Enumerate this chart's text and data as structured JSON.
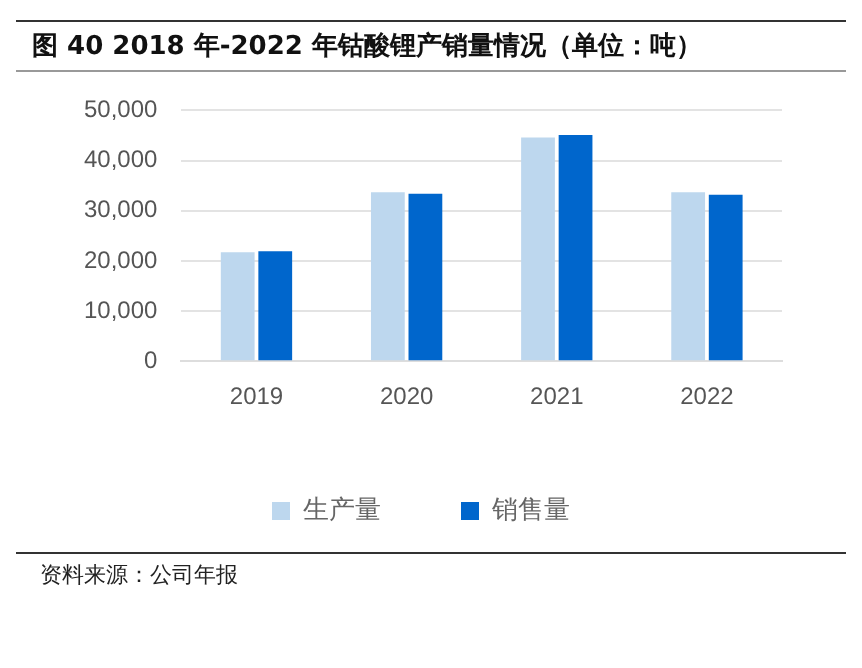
{
  "chart_data": {
    "type": "bar",
    "title": "图 40 2018 年-2022 年钴酸锂产销量情况（单位：吨）",
    "categories": [
      "2019",
      "2020",
      "2021",
      "2022"
    ],
    "series": [
      {
        "name": "生产量",
        "color": "#bdd7ee",
        "values": [
          21700,
          33700,
          44600,
          33700
        ]
      },
      {
        "name": "销售量",
        "color": "#0066cc",
        "values": [
          21900,
          33400,
          45100,
          33200
        ]
      }
    ],
    "ylim": [
      0,
      50000
    ],
    "yticks": [
      0,
      {
        "value": 10000,
        "label": "10,000"
      },
      {
        "value": 20000,
        "label": "20,000"
      },
      {
        "value": 30000,
        "label": "30,000"
      },
      {
        "value": 40000,
        "label": "40,000"
      },
      {
        "value": 50000,
        "label": "50,000"
      }
    ],
    "grid": "y",
    "legend": "bottom",
    "annotations": [
      "资料来源：公司年报"
    ]
  }
}
